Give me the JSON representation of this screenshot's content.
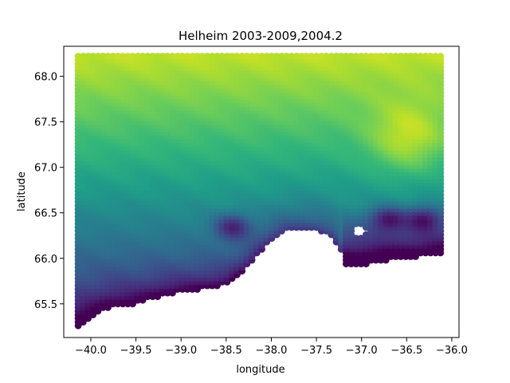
{
  "chart_data": {
    "type": "scatter",
    "title": "Helheim 2003-2009,2004.2",
    "xlabel": "longitude",
    "ylabel": "latitude",
    "xlim": [
      -40.3,
      -35.92
    ],
    "ylim": [
      65.13,
      68.33
    ],
    "xticks": [
      -40.0,
      -39.5,
      -39.0,
      -38.5,
      -38.0,
      -37.5,
      -37.0,
      -36.5,
      -36.0
    ],
    "xtick_labels": [
      "−40.0",
      "−39.5",
      "−39.0",
      "−38.5",
      "−38.0",
      "−37.5",
      "−37.0",
      "−36.5",
      "−36.0"
    ],
    "yticks": [
      65.5,
      66.0,
      66.5,
      67.0,
      67.5,
      68.0
    ],
    "ytick_labels": [
      "65.5",
      "66.0",
      "66.5",
      "67.0",
      "67.5",
      "68.0"
    ],
    "colormap": "viridis",
    "marker": "filled circle",
    "grid": false,
    "legend": false,
    "domain": {
      "x_range": [
        -40.14,
        -36.12
      ],
      "y_range": [
        65.26,
        68.22
      ],
      "southern_boundary": [
        [
          -40.14,
          65.26
        ],
        [
          -40.0,
          65.34
        ],
        [
          -39.8,
          65.46
        ],
        [
          -39.5,
          65.5
        ],
        [
          -39.2,
          65.6
        ],
        [
          -38.8,
          65.66
        ],
        [
          -38.5,
          65.72
        ],
        [
          -38.3,
          65.88
        ],
        [
          -38.15,
          66.05
        ],
        [
          -38.0,
          66.2
        ],
        [
          -37.85,
          66.3
        ],
        [
          -37.65,
          66.32
        ],
        [
          -37.45,
          66.3
        ],
        [
          -37.3,
          66.22
        ],
        [
          -37.22,
          66.05
        ],
        [
          -37.2,
          65.9
        ],
        [
          -37.0,
          65.92
        ],
        [
          -36.8,
          65.96
        ],
        [
          -36.6,
          66.0
        ],
        [
          -36.35,
          66.02
        ],
        [
          -36.12,
          66.06
        ]
      ],
      "hole": {
        "center": [
          -37.02,
          66.3
        ],
        "radius": [
          0.09,
          0.05
        ]
      }
    },
    "field_features": [
      {
        "name": "gradient",
        "description": "values increase from south to north"
      },
      {
        "name": "maximum",
        "lon": -36.48,
        "lat": 67.32,
        "level": 1.0
      },
      {
        "name": "minimum",
        "lon": -38.42,
        "lat": 66.36,
        "level": 0.2
      },
      {
        "name": "minimum",
        "lon": -36.7,
        "lat": 66.45,
        "level": 0.1
      },
      {
        "name": "minimum",
        "lon": -36.3,
        "lat": 66.45,
        "level": 0.12
      }
    ],
    "colors": {
      "low": "#440154",
      "high": "#fde725"
    }
  }
}
